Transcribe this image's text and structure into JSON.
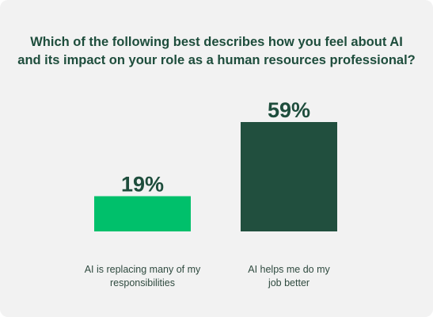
{
  "chart_data": {
    "type": "bar",
    "title": [
      "Which of the following best describes how you feel about AI",
      "and its impact on your role as a human resources professional?"
    ],
    "categories": [
      [
        "AI is replacing many of my",
        "responsibilities"
      ],
      [
        "AI helps me do my",
        "job better"
      ]
    ],
    "values": [
      19,
      59
    ],
    "value_labels": [
      "19%",
      "59%"
    ],
    "colors": [
      "#00c06b",
      "#214f3e"
    ],
    "ylim": [
      0,
      100
    ],
    "grid": false,
    "legend": "none"
  }
}
